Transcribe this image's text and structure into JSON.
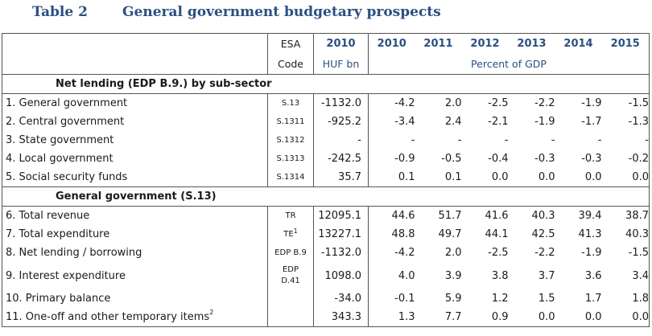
{
  "title": {
    "number": "Table 2",
    "text": "General government budgetary prospects"
  },
  "header": {
    "esa_code_line1": "ESA",
    "esa_code_line2": "Code",
    "year_huf": "2010",
    "unit_huf": "HUF bn",
    "years": [
      "2010",
      "2011",
      "2012",
      "2013",
      "2014",
      "2015"
    ],
    "unit_gdp": "Percent of GDP"
  },
  "sections": {
    "net_lending": "Net lending (EDP B.9.) by sub-sector",
    "general_government": "General government (S.13)"
  },
  "net_lending_rows": [
    {
      "label": "1. General government",
      "code": "S.13",
      "huf": "-1132.0",
      "values": [
        "-4.2",
        "2.0",
        "-2.5",
        "-2.2",
        "-1.9",
        "-1.5"
      ]
    },
    {
      "label": "2. Central government",
      "code": "S.1311",
      "huf": "-925.2",
      "values": [
        "-3.4",
        "2.4",
        "-2.1",
        "-1.9",
        "-1.7",
        "-1.3"
      ]
    },
    {
      "label": "3. State government",
      "code": "S.1312",
      "huf": "-",
      "values": [
        "-",
        "-",
        "-",
        "-",
        "-",
        "-"
      ]
    },
    {
      "label": "4. Local government",
      "code": "S.1313",
      "huf": "-242.5",
      "values": [
        "-0.9",
        "-0.5",
        "-0.4",
        "-0.3",
        "-0.3",
        "-0.2"
      ]
    },
    {
      "label": "5. Social security funds",
      "code": "S.1314",
      "huf": "35.7",
      "values": [
        "0.1",
        "0.1",
        "0.0",
        "0.0",
        "0.0",
        "0.0"
      ]
    }
  ],
  "gg_rows": [
    {
      "label": "6. Total revenue",
      "code": "TR",
      "huf": "12095.1",
      "values": [
        "44.6",
        "51.7",
        "41.6",
        "40.3",
        "39.4",
        "38.7"
      ]
    },
    {
      "label": "7. Total expenditure",
      "code": "TE",
      "code_sup": "1",
      "huf": "13227.1",
      "values": [
        "48.8",
        "49.7",
        "44.1",
        "42.5",
        "41.3",
        "40.3"
      ]
    },
    {
      "label": "8. Net lending / borrowing",
      "code": "EDP B.9",
      "huf": "-1132.0",
      "values": [
        "-4.2",
        "2.0",
        "-2.5",
        "-2.2",
        "-1.9",
        "-1.5"
      ]
    },
    {
      "label": "9. Interest expenditure",
      "code": "EDP",
      "code2": "D.41",
      "huf": "1098.0",
      "values": [
        "4.0",
        "3.9",
        "3.8",
        "3.7",
        "3.6",
        "3.4"
      ]
    },
    {
      "label": "10. Primary balance",
      "code": "",
      "huf": "-34.0",
      "values": [
        "-0.1",
        "5.9",
        "1.2",
        "1.5",
        "1.7",
        "1.8"
      ]
    },
    {
      "label": "11. One-off and other temporary items",
      "label_sup": "2",
      "code": "",
      "huf": "343.3",
      "values": [
        "1.3",
        "7.7",
        "0.9",
        "0.0",
        "0.0",
        "0.0"
      ]
    }
  ]
}
